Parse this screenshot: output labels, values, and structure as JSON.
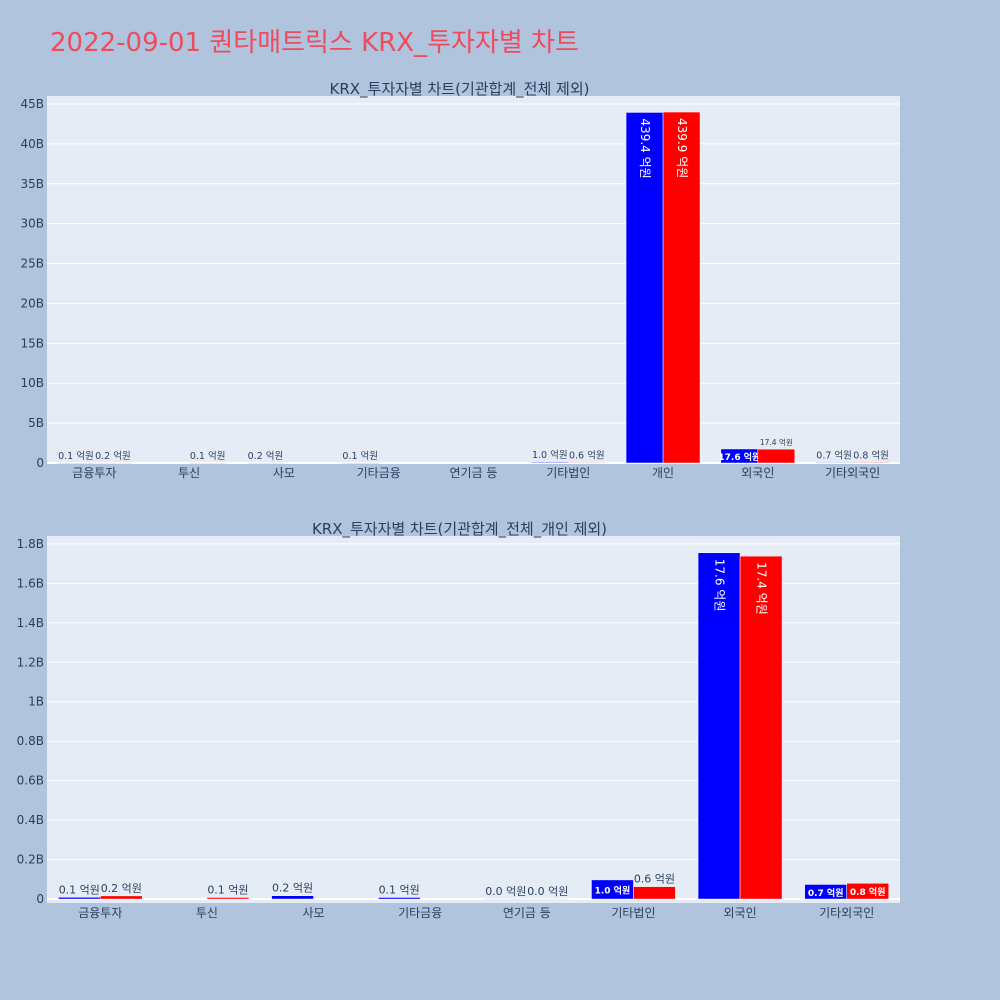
{
  "page_title": "2022-09-01 퀀타매트릭스 KRX_투자자별 차트",
  "colors": {
    "background": "#b0c4de",
    "plot_bg": "#e5ecf6",
    "title": "#ee4b5d",
    "buy": "#0000ff",
    "sell": "#ff0000",
    "text": "#2a3f5f"
  },
  "chart_data": [
    {
      "type": "bar",
      "title": "KRX_투자자별 차트(기관합계_전체 제외)",
      "categories": [
        "금융투자",
        "투신",
        "사모",
        "기타금융",
        "연기금 등",
        "기타법인",
        "개인",
        "외국인",
        "기타외국인"
      ],
      "series": [
        {
          "color": "#0000ff",
          "values": [
            9000000,
            0,
            20000000,
            10000000,
            0,
            100000000,
            43940000000,
            1760000000,
            70000000
          ],
          "labels": [
            "0.1 억원",
            "",
            "0.2 억원",
            "0.1 억원",
            "",
            "1.0 억원",
            "439.4 억원",
            "17.6 억원",
            "0.7 억원"
          ]
        },
        {
          "color": "#ff0000",
          "values": [
            16000000,
            10000000,
            0,
            0,
            0,
            60000000,
            43990000000,
            1740000000,
            80000000
          ],
          "labels": [
            "0.2 억원",
            "0.1 억원",
            "",
            "",
            "",
            "0.6 억원",
            "439.9 억원",
            "17.4 억원",
            "0.8 억원"
          ]
        }
      ],
      "ylim": [
        0,
        46000000000
      ],
      "yticks": [
        0,
        5000000000,
        10000000000,
        15000000000,
        20000000000,
        25000000000,
        30000000000,
        35000000000,
        40000000000,
        45000000000
      ],
      "yticklabels": [
        "0",
        "5B",
        "10B",
        "15B",
        "20B",
        "25B",
        "30B",
        "35B",
        "40B",
        "45B"
      ],
      "grid": true
    },
    {
      "type": "bar",
      "title": "KRX_투자자별 차트(기관합계_전체_개인 제외)",
      "categories": [
        "금융투자",
        "투신",
        "사모",
        "기타금융",
        "연기금 등",
        "기타법인",
        "외국인",
        "기타외국인"
      ],
      "series": [
        {
          "color": "#0000ff",
          "values": [
            9000000,
            0,
            17000000,
            8000000,
            1000000,
            97000000,
            1755000000,
            74000000
          ],
          "labels": [
            "0.1 억원",
            "",
            "0.2 억원",
            "0.1 억원",
            "0.0 억원",
            "1.0 억원",
            "17.6 억원",
            "0.7 억원"
          ]
        },
        {
          "color": "#ff0000",
          "values": [
            16000000,
            8000000,
            0,
            0,
            1000000,
            63000000,
            1738000000,
            80000000
          ],
          "labels": [
            "0.2 억원",
            "0.1 억원",
            "",
            "",
            "0.0 억원",
            "0.6 억원",
            "17.4 억원",
            "0.8 억원"
          ]
        }
      ],
      "ylim": [
        -20000000,
        1840000000
      ],
      "yticks": [
        0,
        200000000,
        400000000,
        600000000,
        800000000,
        1000000000,
        1200000000,
        1400000000,
        1600000000,
        1800000000
      ],
      "yticklabels": [
        "0",
        "0.2B",
        "0.4B",
        "0.6B",
        "0.8B",
        "1B",
        "1.2B",
        "1.4B",
        "1.6B",
        "1.8B"
      ],
      "grid": true
    }
  ]
}
